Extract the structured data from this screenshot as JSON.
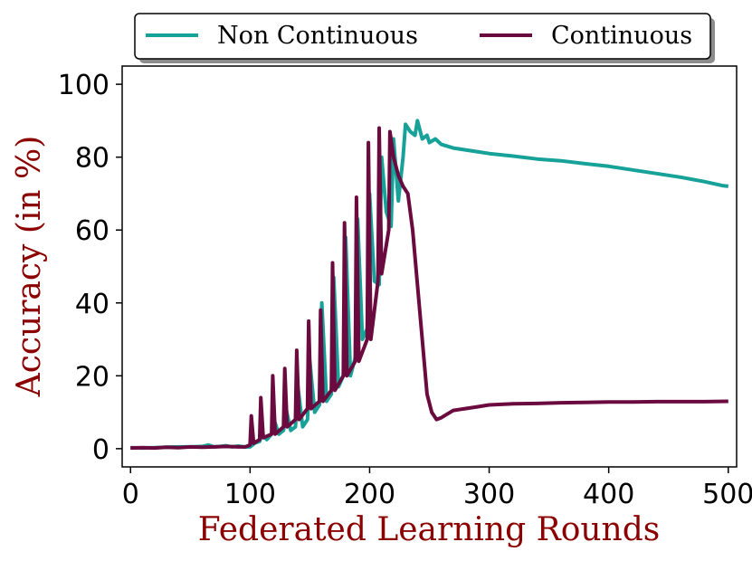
{
  "chart_data": {
    "type": "line",
    "xlabel": "Federated Learning Rounds",
    "ylabel": "Accuracy (in %)",
    "xlim": [
      -7,
      507
    ],
    "ylim": [
      -5,
      105
    ],
    "xticks": [
      0,
      100,
      200,
      300,
      400,
      500
    ],
    "yticks": [
      0,
      20,
      40,
      60,
      80,
      100
    ],
    "grid": false,
    "legend_position": "top",
    "axis_label_color": "#8b0000",
    "series": [
      {
        "name": "Non Continuous",
        "color": "#17a299",
        "x": [
          0,
          10,
          20,
          30,
          40,
          50,
          60,
          65,
          70,
          75,
          80,
          85,
          90,
          95,
          100,
          104,
          108,
          110,
          114,
          118,
          120,
          124,
          128,
          130,
          134,
          138,
          140,
          144,
          148,
          150,
          154,
          158,
          160,
          164,
          168,
          170,
          174,
          178,
          180,
          184,
          188,
          190,
          194,
          198,
          200,
          204,
          208,
          210,
          214,
          218,
          220,
          224,
          228,
          230,
          234,
          238,
          240,
          244,
          248,
          250,
          255,
          260,
          270,
          280,
          290,
          300,
          320,
          340,
          360,
          380,
          400,
          420,
          440,
          460,
          480,
          495,
          500
        ],
        "y": [
          0.3,
          0.2,
          0.3,
          0.4,
          0.5,
          0.5,
          0.6,
          1.0,
          0.5,
          0.6,
          0.8,
          0.5,
          0.7,
          0.5,
          0.5,
          1.5,
          2.0,
          4,
          2.5,
          4,
          8,
          4,
          5,
          11,
          5,
          6,
          17,
          6,
          8,
          24,
          10,
          12,
          40,
          13,
          15,
          47,
          17,
          20,
          58,
          20,
          25,
          63,
          30,
          33,
          70,
          46,
          45,
          80,
          65,
          61,
          85,
          68,
          80,
          89,
          87,
          86,
          90,
          85,
          86,
          84,
          85,
          83.5,
          82.5,
          82,
          81.5,
          81,
          80.3,
          79.5,
          79,
          78.2,
          77.5,
          76.5,
          75.5,
          74.5,
          73.3,
          72.2,
          72
        ]
      },
      {
        "name": "Continuous",
        "color": "#6b0a3e",
        "x": [
          0,
          10,
          20,
          30,
          40,
          50,
          60,
          70,
          80,
          90,
          96,
          100,
          101,
          103,
          108,
          109,
          111,
          118,
          119,
          121,
          128,
          129,
          131,
          138,
          139,
          141,
          148,
          149,
          151,
          158,
          159,
          161,
          168,
          169,
          171,
          178,
          179,
          181,
          188,
          189,
          191,
          198,
          199,
          201,
          207,
          208,
          210,
          216,
          217,
          220,
          224,
          228,
          232,
          236,
          240,
          244,
          248,
          252,
          256,
          260,
          270,
          280,
          290,
          300,
          320,
          340,
          360,
          380,
          400,
          420,
          440,
          460,
          480,
          500
        ],
        "y": [
          0.2,
          0.3,
          0.2,
          0.4,
          0.3,
          0.5,
          0.4,
          0.5,
          0.6,
          0.5,
          0.5,
          1.0,
          9,
          1.5,
          2.5,
          14,
          3,
          4,
          20,
          4,
          6,
          22,
          6,
          8,
          27,
          8,
          11,
          35,
          11,
          13,
          38,
          13,
          16,
          51,
          16,
          20,
          62,
          20,
          24,
          69,
          24,
          30,
          84,
          30,
          46,
          88,
          48,
          60,
          87,
          80,
          75,
          72,
          70,
          60,
          45,
          30,
          15,
          10,
          8,
          8.5,
          10.5,
          11,
          11.5,
          12,
          12.3,
          12.4,
          12.6,
          12.7,
          12.8,
          12.8,
          12.9,
          12.9,
          12.9,
          13
        ]
      }
    ]
  }
}
